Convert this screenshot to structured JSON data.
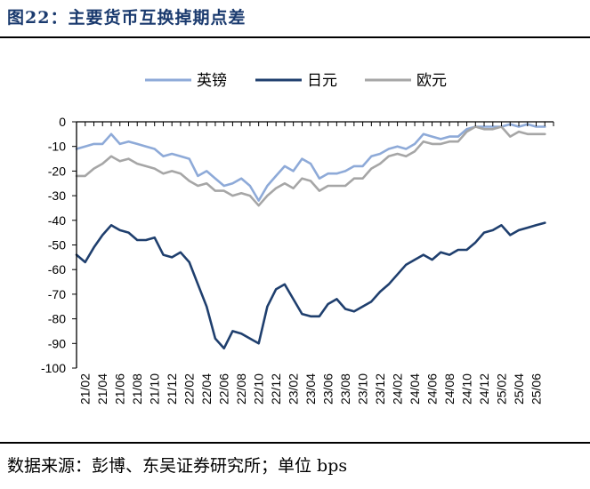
{
  "figure": {
    "title": "图22：主要货币互换掉期点差",
    "source": "数据来源：彭博、东吴证券研究所；单位 bps"
  },
  "chart_data": {
    "type": "line",
    "title": "",
    "xlabel": "",
    "ylabel": "",
    "ylim": [
      -100,
      0
    ],
    "yticks": [
      0,
      -10,
      -20,
      -30,
      -40,
      -50,
      -60,
      -70,
      -80,
      -90,
      -100
    ],
    "xlim": [
      "21/01",
      "25/08"
    ],
    "xticks": [
      "21/02",
      "21/04",
      "21/06",
      "21/08",
      "21/10",
      "21/12",
      "22/02",
      "22/04",
      "22/06",
      "22/08",
      "22/10",
      "22/12",
      "23/02",
      "23/04",
      "23/06",
      "23/08",
      "23/10",
      "23/12",
      "24/02",
      "24/04",
      "24/06",
      "24/08",
      "24/10",
      "24/12",
      "25/02",
      "25/04",
      "25/06"
    ],
    "legend_position": "top-center",
    "grid": false,
    "series": [
      {
        "name": "英镑",
        "color": "#8eaad8",
        "points": [
          [
            "21/01",
            -11
          ],
          [
            "21/02",
            -10
          ],
          [
            "21/03",
            -9
          ],
          [
            "21/04",
            -9
          ],
          [
            "21/05",
            -5
          ],
          [
            "21/06",
            -9
          ],
          [
            "21/07",
            -8
          ],
          [
            "21/08",
            -9
          ],
          [
            "21/09",
            -10
          ],
          [
            "21/10",
            -11
          ],
          [
            "21/11",
            -14
          ],
          [
            "21/12",
            -13
          ],
          [
            "22/01",
            -14
          ],
          [
            "22/02",
            -15
          ],
          [
            "22/03",
            -22
          ],
          [
            "22/04",
            -20
          ],
          [
            "22/05",
            -23
          ],
          [
            "22/06",
            -26
          ],
          [
            "22/07",
            -25
          ],
          [
            "22/08",
            -23
          ],
          [
            "22/09",
            -26
          ],
          [
            "22/10",
            -32
          ],
          [
            "22/11",
            -26
          ],
          [
            "22/12",
            -22
          ],
          [
            "23/01",
            -18
          ],
          [
            "23/02",
            -20
          ],
          [
            "23/03",
            -15
          ],
          [
            "23/04",
            -17
          ],
          [
            "23/05",
            -23
          ],
          [
            "23/06",
            -21
          ],
          [
            "23/07",
            -21
          ],
          [
            "23/08",
            -20
          ],
          [
            "23/09",
            -18
          ],
          [
            "23/10",
            -18
          ],
          [
            "23/11",
            -14
          ],
          [
            "23/12",
            -13
          ],
          [
            "24/01",
            -11
          ],
          [
            "24/02",
            -10
          ],
          [
            "24/03",
            -11
          ],
          [
            "24/04",
            -9
          ],
          [
            "24/05",
            -5
          ],
          [
            "24/06",
            -6
          ],
          [
            "24/07",
            -7
          ],
          [
            "24/08",
            -6
          ],
          [
            "24/09",
            -6
          ],
          [
            "24/10",
            -3
          ],
          [
            "24/11",
            -2
          ],
          [
            "24/12",
            -2
          ],
          [
            "25/01",
            -2
          ],
          [
            "25/02",
            -2
          ],
          [
            "25/03",
            -1
          ],
          [
            "25/04",
            -2
          ],
          [
            "25/05",
            -1
          ],
          [
            "25/06",
            -2
          ],
          [
            "25/07",
            -2
          ]
        ]
      },
      {
        "name": "日元",
        "color": "#1f3f6e",
        "points": [
          [
            "21/01",
            -54
          ],
          [
            "21/02",
            -57
          ],
          [
            "21/03",
            -51
          ],
          [
            "21/04",
            -46
          ],
          [
            "21/05",
            -42
          ],
          [
            "21/06",
            -44
          ],
          [
            "21/07",
            -45
          ],
          [
            "21/08",
            -48
          ],
          [
            "21/09",
            -48
          ],
          [
            "21/10",
            -47
          ],
          [
            "21/11",
            -54
          ],
          [
            "21/12",
            -55
          ],
          [
            "22/01",
            -53
          ],
          [
            "22/02",
            -57
          ],
          [
            "22/03",
            -66
          ],
          [
            "22/04",
            -75
          ],
          [
            "22/05",
            -88
          ],
          [
            "22/06",
            -92
          ],
          [
            "22/07",
            -85
          ],
          [
            "22/08",
            -86
          ],
          [
            "22/09",
            -88
          ],
          [
            "22/10",
            -90
          ],
          [
            "22/11",
            -75
          ],
          [
            "22/12",
            -68
          ],
          [
            "23/01",
            -66
          ],
          [
            "23/02",
            -72
          ],
          [
            "23/03",
            -78
          ],
          [
            "23/04",
            -79
          ],
          [
            "23/05",
            -79
          ],
          [
            "23/06",
            -74
          ],
          [
            "23/07",
            -72
          ],
          [
            "23/08",
            -76
          ],
          [
            "23/09",
            -77
          ],
          [
            "23/10",
            -75
          ],
          [
            "23/11",
            -73
          ],
          [
            "23/12",
            -69
          ],
          [
            "24/01",
            -66
          ],
          [
            "24/02",
            -62
          ],
          [
            "24/03",
            -58
          ],
          [
            "24/04",
            -56
          ],
          [
            "24/05",
            -54
          ],
          [
            "24/06",
            -56
          ],
          [
            "24/07",
            -53
          ],
          [
            "24/08",
            -54
          ],
          [
            "24/09",
            -52
          ],
          [
            "24/10",
            -52
          ],
          [
            "24/11",
            -49
          ],
          [
            "24/12",
            -45
          ],
          [
            "25/01",
            -44
          ],
          [
            "25/02",
            -42
          ],
          [
            "25/03",
            -46
          ],
          [
            "25/04",
            -44
          ],
          [
            "25/05",
            -43
          ],
          [
            "25/06",
            -42
          ],
          [
            "25/07",
            -41
          ]
        ]
      },
      {
        "name": "欧元",
        "color": "#a6a6a6",
        "points": [
          [
            "21/01",
            -22
          ],
          [
            "21/02",
            -22
          ],
          [
            "21/03",
            -19
          ],
          [
            "21/04",
            -17
          ],
          [
            "21/05",
            -14
          ],
          [
            "21/06",
            -16
          ],
          [
            "21/07",
            -15
          ],
          [
            "21/08",
            -17
          ],
          [
            "21/09",
            -18
          ],
          [
            "21/10",
            -19
          ],
          [
            "21/11",
            -21
          ],
          [
            "21/12",
            -20
          ],
          [
            "22/01",
            -21
          ],
          [
            "22/02",
            -24
          ],
          [
            "22/03",
            -26
          ],
          [
            "22/04",
            -25
          ],
          [
            "22/05",
            -28
          ],
          [
            "22/06",
            -28
          ],
          [
            "22/07",
            -30
          ],
          [
            "22/08",
            -29
          ],
          [
            "22/09",
            -30
          ],
          [
            "22/10",
            -34
          ],
          [
            "22/11",
            -30
          ],
          [
            "22/12",
            -27
          ],
          [
            "23/01",
            -25
          ],
          [
            "23/02",
            -27
          ],
          [
            "23/03",
            -23
          ],
          [
            "23/04",
            -24
          ],
          [
            "23/05",
            -28
          ],
          [
            "23/06",
            -26
          ],
          [
            "23/07",
            -26
          ],
          [
            "23/08",
            -26
          ],
          [
            "23/09",
            -23
          ],
          [
            "23/10",
            -23
          ],
          [
            "23/11",
            -19
          ],
          [
            "23/12",
            -17
          ],
          [
            "24/01",
            -14
          ],
          [
            "24/02",
            -13
          ],
          [
            "24/03",
            -14
          ],
          [
            "24/04",
            -12
          ],
          [
            "24/05",
            -8
          ],
          [
            "24/06",
            -9
          ],
          [
            "24/07",
            -9
          ],
          [
            "24/08",
            -8
          ],
          [
            "24/09",
            -8
          ],
          [
            "24/10",
            -4
          ],
          [
            "24/11",
            -2
          ],
          [
            "24/12",
            -3
          ],
          [
            "25/01",
            -3
          ],
          [
            "25/02",
            -2
          ],
          [
            "25/03",
            -6
          ],
          [
            "25/04",
            -4
          ],
          [
            "25/05",
            -5
          ],
          [
            "25/06",
            -5
          ],
          [
            "25/07",
            -5
          ]
        ]
      }
    ]
  }
}
